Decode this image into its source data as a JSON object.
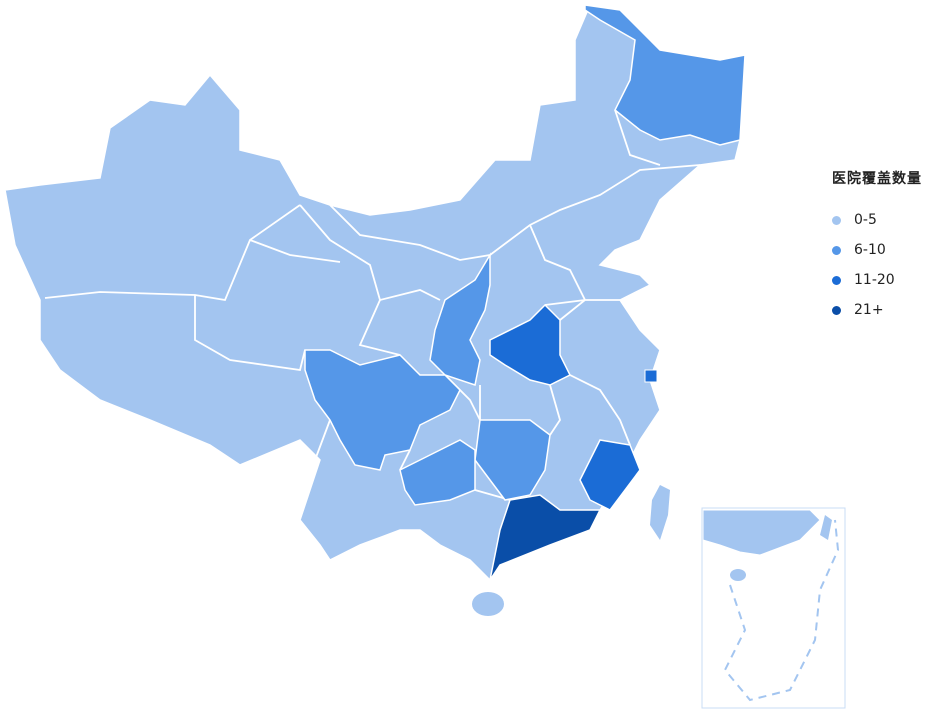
{
  "legend": {
    "title": "医院覆盖数量",
    "items": [
      {
        "label": "0-5",
        "color": "#a3c5f0"
      },
      {
        "label": "6-10",
        "color": "#5597e8"
      },
      {
        "label": "11-20",
        "color": "#1b6cd6"
      },
      {
        "label": "21+",
        "color": "#0a4ea8"
      }
    ]
  },
  "regions": [
    {
      "name": "heilongjiang",
      "category": 1
    },
    {
      "name": "shaanxi",
      "category": 1
    },
    {
      "name": "sichuan",
      "category": 1
    },
    {
      "name": "guizhou",
      "category": 1
    },
    {
      "name": "hunan",
      "category": 1
    },
    {
      "name": "henan",
      "category": 2
    },
    {
      "name": "fujian",
      "category": 2
    },
    {
      "name": "shanghai",
      "category": 2
    },
    {
      "name": "guangdong",
      "category": 3
    }
  ],
  "default_category": 0
}
